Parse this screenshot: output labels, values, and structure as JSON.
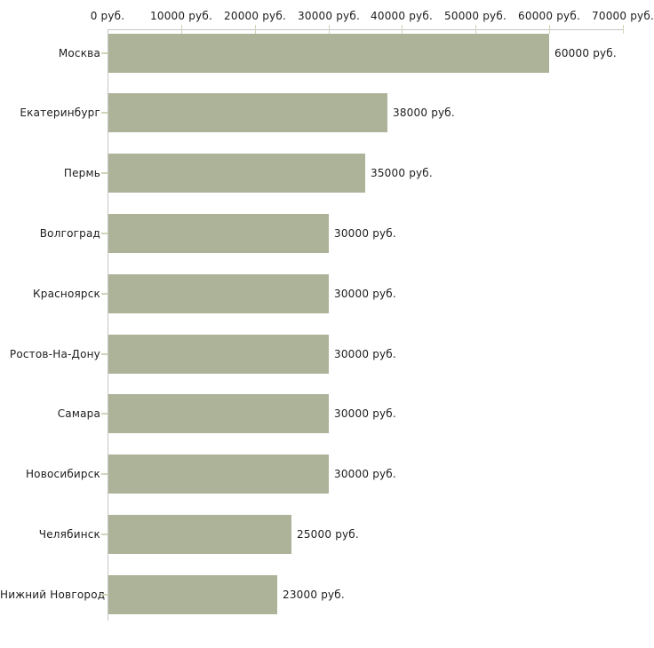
{
  "chart_data": {
    "type": "bar",
    "orientation": "horizontal",
    "title": "",
    "categories": [
      "Москва",
      "Екатеринбург",
      "Пермь",
      "Волгоград",
      "Красноярск",
      "Ростов-На-Дону",
      "Самара",
      "Новосибирск",
      "Челябинск",
      "Нижний Новгород"
    ],
    "values": [
      60000,
      38000,
      35000,
      30000,
      30000,
      30000,
      30000,
      30000,
      25000,
      23000
    ],
    "value_labels": [
      "60000 руб.",
      "38000 руб.",
      "35000 руб.",
      "30000 руб.",
      "30000 руб.",
      "30000 руб.",
      "30000 руб.",
      "30000 руб.",
      "25000 руб.",
      "23000 руб."
    ],
    "x_axis": {
      "min": 0,
      "max": 70000,
      "tick_values": [
        0,
        10000,
        20000,
        30000,
        40000,
        50000,
        60000,
        70000
      ],
      "tick_labels": [
        "0 руб.",
        "10000 руб.",
        "20000 руб.",
        "30000 руб.",
        "40000 руб.",
        "50000 руб.",
        "60000 руб.",
        "70000 руб."
      ],
      "unit": "руб.",
      "position": "top"
    },
    "grid": false,
    "legend": false,
    "colors": {
      "bar": "#adb399",
      "axis_line": "#c6c6c6",
      "tick_mark": "#d0d5b8",
      "text": "#1c1c1c",
      "background": "#ffffff"
    }
  }
}
